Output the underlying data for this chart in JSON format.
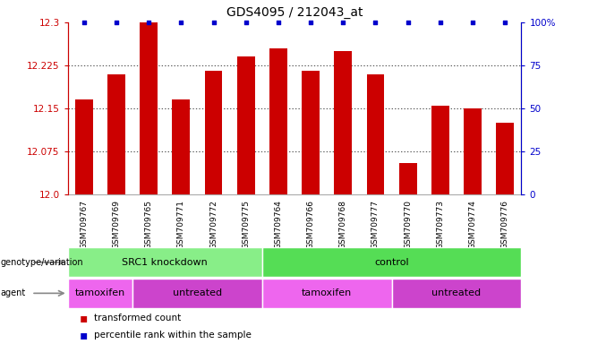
{
  "title": "GDS4095 / 212043_at",
  "samples": [
    "GSM709767",
    "GSM709769",
    "GSM709765",
    "GSM709771",
    "GSM709772",
    "GSM709775",
    "GSM709764",
    "GSM709766",
    "GSM709768",
    "GSM709777",
    "GSM709770",
    "GSM709773",
    "GSM709774",
    "GSM709776"
  ],
  "bar_values": [
    12.165,
    12.21,
    12.3,
    12.165,
    12.215,
    12.24,
    12.255,
    12.215,
    12.25,
    12.21,
    12.055,
    12.155,
    12.15,
    12.125
  ],
  "bar_color": "#cc0000",
  "dot_color": "#0000cc",
  "ylim_left": [
    12.0,
    12.3
  ],
  "ylim_right": [
    0,
    100
  ],
  "yticks_left": [
    12.0,
    12.075,
    12.15,
    12.225,
    12.3
  ],
  "yticks_right": [
    0,
    25,
    50,
    75,
    100
  ],
  "background_color": "#ffffff",
  "genotype_groups": [
    {
      "label": "SRC1 knockdown",
      "start": 0,
      "end": 6,
      "color": "#88ee88"
    },
    {
      "label": "control",
      "start": 6,
      "end": 14,
      "color": "#55dd55"
    }
  ],
  "agent_groups": [
    {
      "label": "tamoxifen",
      "start": 0,
      "end": 2,
      "color": "#ee66ee"
    },
    {
      "label": "untreated",
      "start": 2,
      "end": 6,
      "color": "#cc44cc"
    },
    {
      "label": "tamoxifen",
      "start": 6,
      "end": 10,
      "color": "#ee66ee"
    },
    {
      "label": "untreated",
      "start": 10,
      "end": 14,
      "color": "#cc44cc"
    }
  ],
  "legend_items": [
    {
      "label": "transformed count",
      "color": "#cc0000"
    },
    {
      "label": "percentile rank within the sample",
      "color": "#0000cc"
    }
  ],
  "left_axis_color": "#cc0000",
  "right_axis_color": "#0000cc",
  "sample_label_bg": "#dddddd"
}
